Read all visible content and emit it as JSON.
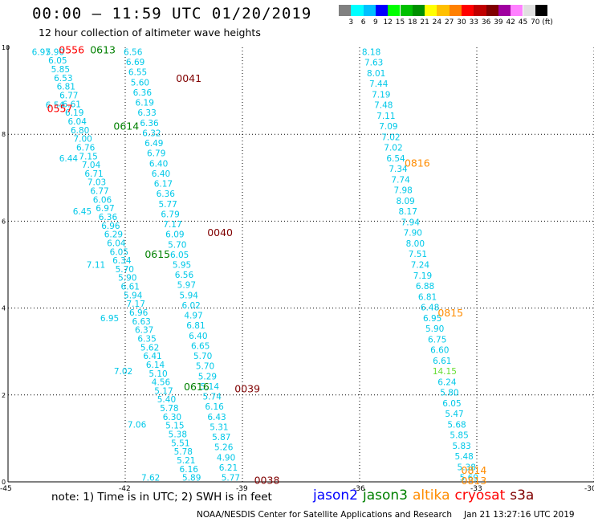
{
  "header": {
    "title": "00:00 – 11:59 UTC 01/20/2019",
    "subtitle": "12 hour collection of altimeter wave heights"
  },
  "color_scale": {
    "colors": [
      "#808080",
      "#00ffff",
      "#00c0ff",
      "#0000ff",
      "#00ff00",
      "#00c000",
      "#009000",
      "#ffff00",
      "#ffc000",
      "#ff8000",
      "#ff0000",
      "#c00000",
      "#800000",
      "#a000a0",
      "#ff80ff",
      "#e0e0e0",
      "#000000"
    ],
    "labels": [
      "3",
      "6",
      "9",
      "12",
      "15",
      "18",
      "21",
      "24",
      "27",
      "30",
      "33",
      "36",
      "39",
      "42",
      "45",
      "70",
      "(ft)"
    ]
  },
  "colors": {
    "jason2": "#0000ff",
    "jason3": "#008000",
    "altika": "#ff8c00",
    "cryosat": "#ff0000",
    "s3a": "#800000",
    "swh_cyan": "#00c8e8",
    "swh_green": "#66dd33"
  },
  "legend": {
    "note": "note:  1) Time is in UTC;  2) SWH is in feet",
    "satellites": [
      {
        "name": "jason2",
        "color": "#0000ff"
      },
      {
        "name": "jason3",
        "color": "#008000"
      },
      {
        "name": "altika",
        "color": "#ff8c00"
      },
      {
        "name": "cryosat",
        "color": "#ff0000"
      },
      {
        "name": "s3a",
        "color": "#800000"
      }
    ]
  },
  "footer": {
    "credit": "NOAA/NESDIS Center for Satellite Applications and Research",
    "timestamp": "Jan 21 13:27:16 UTC 2019"
  },
  "chart_data": {
    "type": "scatter",
    "xlim": [
      -45,
      -30
    ],
    "ylim": [
      0,
      10
    ],
    "x_ticks": [
      "-45",
      "-42",
      "-39",
      "-36",
      "-33",
      "-30"
    ],
    "y_ticks": [
      "0",
      "2",
      "4",
      "6",
      "8",
      "10"
    ],
    "grid": true,
    "tracks": [
      {
        "sat": "cryosat",
        "x0": -44.15,
        "x1": -41.35,
        "values": [
          "6.97",
          "6.54",
          "6.44",
          "6.45",
          "7.11",
          "6.95",
          "7.02",
          "7.06",
          "7.62"
        ]
      },
      {
        "sat": "jason3",
        "x0": -43.8,
        "x1": -40.3,
        "values": [
          "5.90",
          "6.05",
          "5.85",
          "6.53",
          "6.81",
          "6.77",
          "6.61",
          "6.19",
          "6.04",
          "6.80",
          "7.00",
          "6.76",
          "7.15",
          "7.04",
          "6.71",
          "7.03",
          "6.77",
          "6.06",
          "6.97",
          "6.36",
          "6.96",
          "6.29",
          "6.04",
          "6.05",
          "6.34",
          "5.70",
          "5.90",
          "6.61",
          "5.94",
          "7.17",
          "6.96",
          "6.63",
          "6.37",
          "6.35",
          "5.62",
          "6.41",
          "6.14",
          "5.10",
          "4.56",
          "5.17",
          "5.40",
          "5.78",
          "6.30",
          "5.15",
          "5.38",
          "5.51",
          "5.78",
          "5.21",
          "6.16",
          "5.89"
        ]
      },
      {
        "sat": "s3a",
        "x0": -41.8,
        "x1": -39.3,
        "values": [
          "6.56",
          "6.69",
          "6.55",
          "5.60",
          "6.36",
          "6.19",
          "6.33",
          "6.36",
          "6.32",
          "6.49",
          "6.79",
          "6.40",
          "6.40",
          "6.17",
          "6.36",
          "5.77",
          "6.79",
          "7.17",
          "6.09",
          "5.70",
          "6.05",
          "5.95",
          "6.56",
          "5.97",
          "5.94",
          "6.02",
          "4.97",
          "6.81",
          "6.40",
          "6.65",
          "5.70",
          "5.70",
          "5.29",
          "5.14",
          "5.74",
          "6.16",
          "6.43",
          "5.31",
          "5.87",
          "5.26",
          "4.90",
          "6.21",
          "5.77"
        ]
      },
      {
        "sat": "altika",
        "x0": -35.7,
        "x1": -33.2,
        "values": [
          "8.18",
          "7.63",
          "8.01",
          "7.44",
          "7.19",
          "7.48",
          "7.11",
          "7.09",
          "7.02",
          "7.02",
          "6.54",
          "7.34",
          "7.74",
          "7.98",
          "8.09",
          "8.17",
          "7.94",
          "7.90",
          "8.00",
          "7.51",
          "7.24",
          "7.19",
          "6.88",
          "6.81",
          "6.48",
          "6.95",
          "5.90",
          "6.75",
          "6.60",
          "6.61",
          "14.15",
          "6.24",
          "5.80",
          "6.05",
          "5.47",
          "5.68",
          "5.85",
          "5.83",
          "5.48",
          "5.38",
          "5.69"
        ]
      }
    ],
    "time_labels": [
      {
        "text": "0556",
        "sat": "cryosat",
        "x": -43.7,
        "y": 9.95
      },
      {
        "text": "0613",
        "sat": "jason3",
        "x": -42.9,
        "y": 9.95
      },
      {
        "text": "0557",
        "sat": "cryosat",
        "x": -44.0,
        "y": 8.6
      },
      {
        "text": "0614",
        "sat": "jason3",
        "x": -42.3,
        "y": 8.2
      },
      {
        "text": "0615",
        "sat": "jason3",
        "x": -41.5,
        "y": 5.25
      },
      {
        "text": "0616",
        "sat": "jason3",
        "x": -40.5,
        "y": 2.2
      },
      {
        "text": "0041",
        "sat": "s3a",
        "x": -40.7,
        "y": 9.3
      },
      {
        "text": "0040",
        "sat": "s3a",
        "x": -39.9,
        "y": 5.75
      },
      {
        "text": "0039",
        "sat": "s3a",
        "x": -39.2,
        "y": 2.15
      },
      {
        "text": "0038",
        "sat": "s3a",
        "x": -38.7,
        "y": 0.05
      },
      {
        "text": "0816",
        "sat": "altika",
        "x": -34.85,
        "y": 7.35
      },
      {
        "text": "0815",
        "sat": "altika",
        "x": -34.0,
        "y": 3.9
      },
      {
        "text": "0814",
        "sat": "altika",
        "x": -33.4,
        "y": 0.28
      },
      {
        "text": "0813",
        "sat": "altika",
        "x": -33.4,
        "y": 0.04
      }
    ]
  }
}
